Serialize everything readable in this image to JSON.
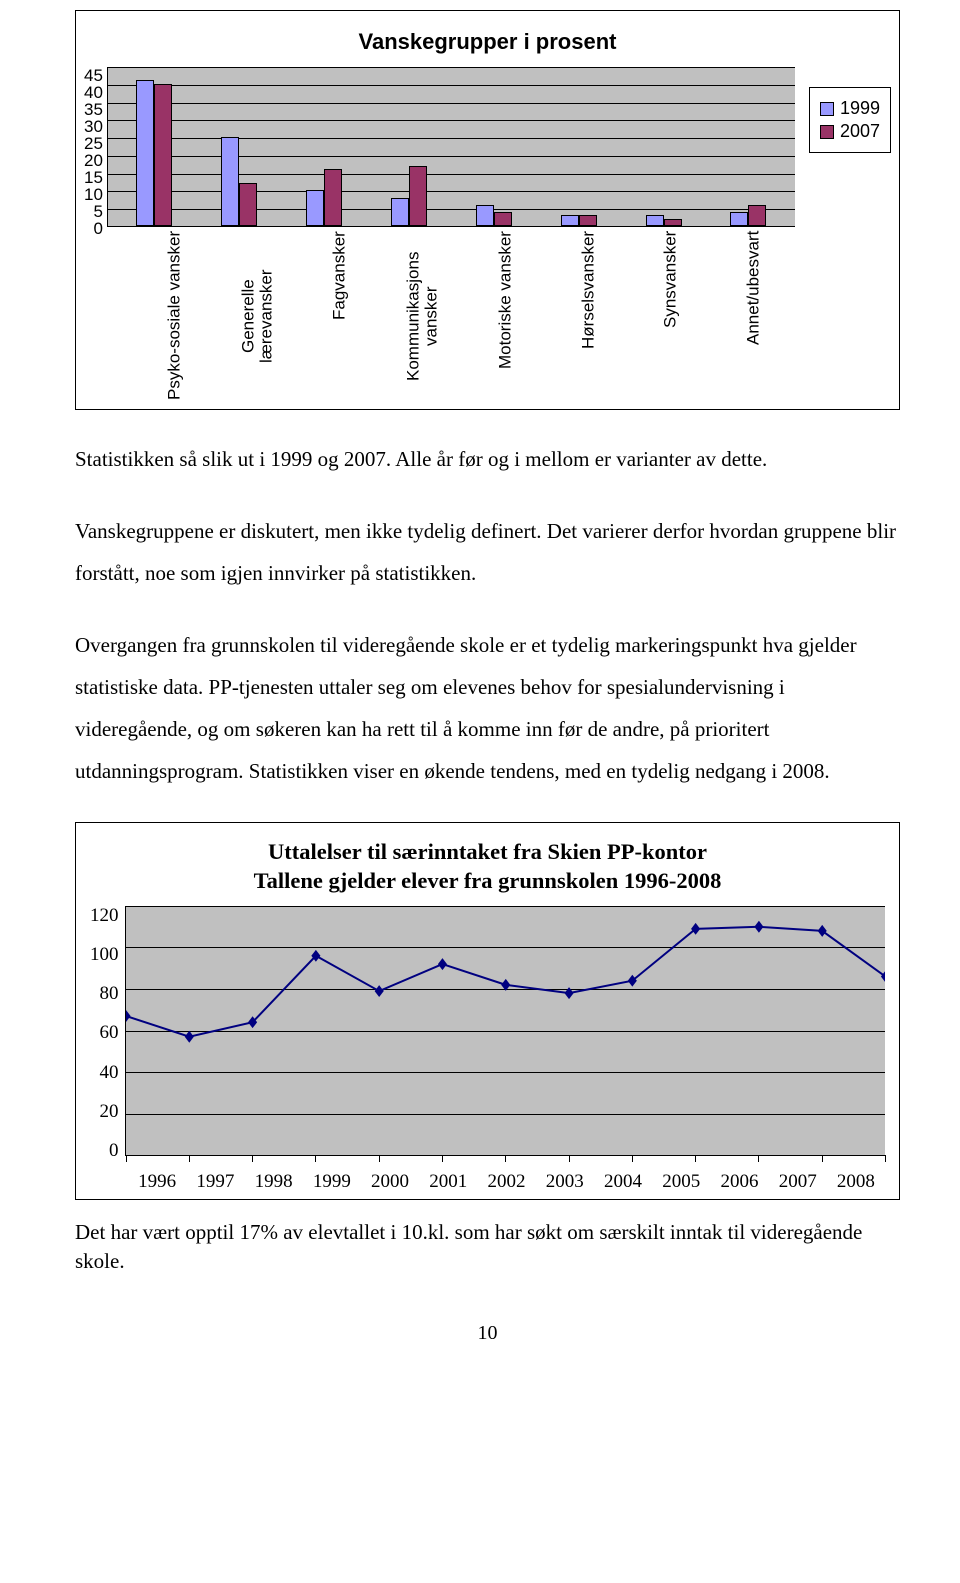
{
  "bar_chart": {
    "type": "bar",
    "title": "Vanskegrupper i prosent",
    "ymax": 45,
    "yticks": [
      45,
      40,
      35,
      30,
      25,
      20,
      15,
      10,
      5,
      0
    ],
    "tick_fontsize": 17,
    "categories": [
      "Psyko-sosiale vansker",
      "Generelle lærevansker",
      "Fagvansker",
      "Kommunikasjons vansker",
      "Motoriske vansker",
      "Hørselsvansker",
      "Synsvansker",
      "Annet/ubesvart"
    ],
    "series": [
      {
        "name": "1999",
        "color": "#9999ff",
        "values": [
          41,
          25,
          10,
          8,
          6,
          3,
          3,
          4
        ]
      },
      {
        "name": "2007",
        "color": "#993366",
        "values": [
          40,
          12,
          16,
          17,
          4,
          3,
          2,
          6
        ]
      }
    ],
    "plot_background": "#c0c0c0",
    "grid_color": "#000000"
  },
  "para1": "Statistikken så slik ut i 1999 og 2007. Alle år før og i mellom er varianter av dette.",
  "para2": "Vanskegruppene er diskutert, men ikke tydelig definert. Det varierer derfor hvordan gruppene blir forstått, noe som igjen innvirker på statistikken.",
  "para3": "Overgangen fra grunnskolen til videregående skole er et tydelig markeringspunkt hva gjelder statistiske data. PP-tjenesten uttaler seg om elevenes behov for spesialundervisning i videregående, og om søkeren kan ha rett til å komme inn før de andre, på prioritert utdanningsprogram. Statistikken viser en økende tendens, med en tydelig nedgang i 2008.",
  "line_chart": {
    "type": "line",
    "title_line1": "Uttalelser til særinntaket fra Skien PP-kontor",
    "title_line2": "Tallene gjelder elever fra grunnskolen 1996-2008",
    "ymax": 120,
    "yticks": [
      120,
      100,
      80,
      60,
      40,
      20,
      0
    ],
    "years": [
      1996,
      1997,
      1998,
      1999,
      2000,
      2001,
      2002,
      2003,
      2004,
      2005,
      2006,
      2007,
      2008
    ],
    "values": [
      67,
      57,
      64,
      96,
      79,
      92,
      82,
      78,
      84,
      109,
      110,
      108,
      86
    ],
    "line_color": "#000080",
    "marker_color": "#000080",
    "marker_size": 6,
    "line_width": 2,
    "plot_background": "#c0c0c0",
    "grid_color": "#000000"
  },
  "para4": "Det har vært opptil 17% av elevtallet i 10.kl. som har søkt om særskilt inntak til videregående skole.",
  "page_number": "10"
}
